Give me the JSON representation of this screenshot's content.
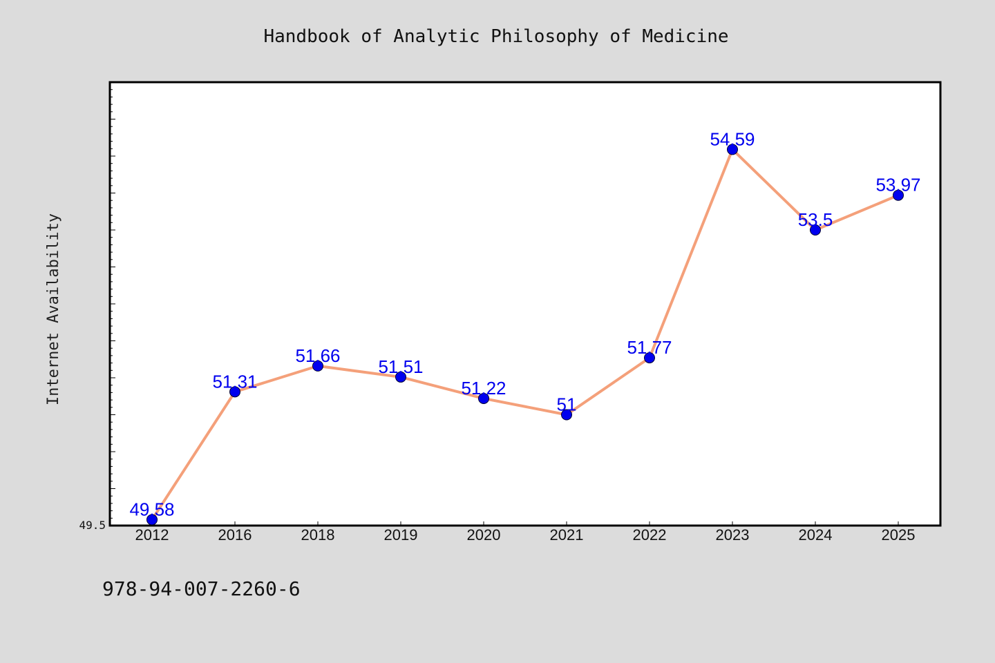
{
  "chart_data": {
    "type": "line",
    "title": "Handbook of Analytic Philosophy of Medicine",
    "ylabel": "Internet Availability",
    "xlabel": "",
    "categories": [
      "2012",
      "2016",
      "2018",
      "2019",
      "2020",
      "2021",
      "2022",
      "2023",
      "2024",
      "2025"
    ],
    "series": [
      {
        "values": [
          49.58,
          51.31,
          51.66,
          51.51,
          51.22,
          51.0,
          51.77,
          54.59,
          53.5,
          53.97
        ],
        "labels": [
          "49.58",
          "51.31",
          "51.66",
          "51.51",
          "51.22",
          "51",
          "51.77",
          "54.59",
          "53.5",
          "53.97"
        ],
        "line_color": "#f4a07a",
        "marker_color": "#0000ee"
      }
    ],
    "ylim": [
      49.5,
      55.5
    ],
    "yticks_labeled": [
      "49.5"
    ],
    "grid": false,
    "legend": "none"
  },
  "footer": {
    "isbn": "978-94-007-2260-6"
  }
}
